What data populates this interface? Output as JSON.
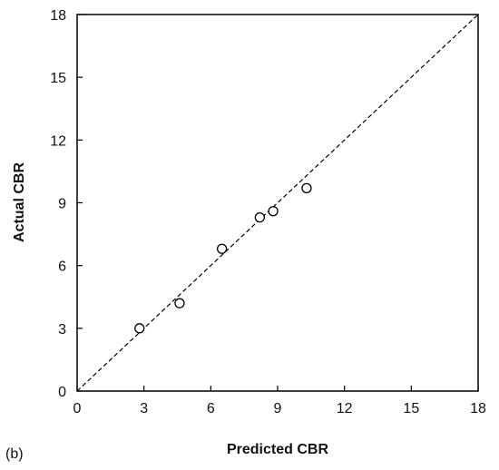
{
  "chart_data": {
    "type": "scatter",
    "panel_label": "(b)",
    "title": "",
    "xlabel": "Predicted CBR",
    "ylabel": "Actual CBR",
    "xlim": [
      0,
      18
    ],
    "ylim": [
      0,
      18
    ],
    "xticks": [
      0,
      3,
      6,
      9,
      12,
      15,
      18
    ],
    "yticks": [
      0,
      3,
      6,
      9,
      12,
      15,
      18
    ],
    "grid": false,
    "legend": "none",
    "reference_line": {
      "style": "dashed",
      "from": [
        0,
        0
      ],
      "to": [
        18,
        18
      ],
      "color": "#000000"
    },
    "marker": {
      "shape": "open-circle",
      "color": "#000000"
    },
    "series": [
      {
        "points": [
          {
            "x": 2.8,
            "y": 3.0
          },
          {
            "x": 4.6,
            "y": 4.2
          },
          {
            "x": 6.5,
            "y": 6.8
          },
          {
            "x": 8.2,
            "y": 8.3
          },
          {
            "x": 8.8,
            "y": 8.6
          },
          {
            "x": 10.3,
            "y": 9.7
          }
        ]
      }
    ]
  }
}
